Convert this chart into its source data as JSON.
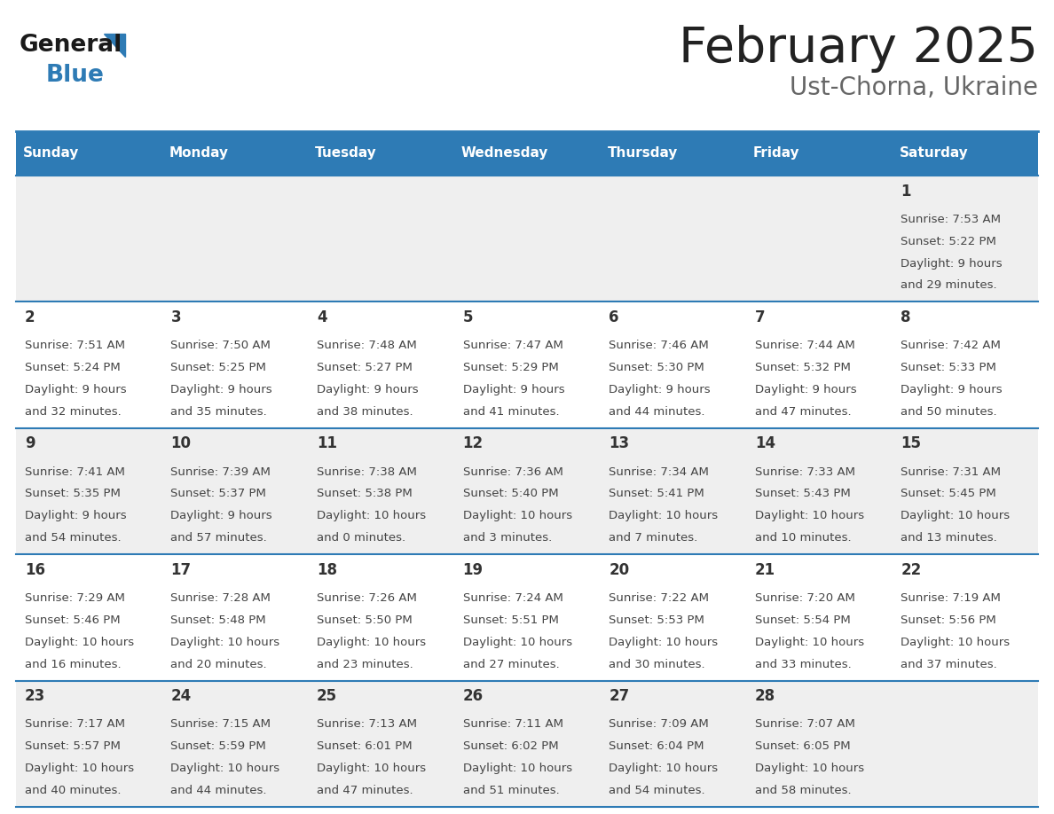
{
  "title": "February 2025",
  "subtitle": "Ust-Chorna, Ukraine",
  "days_of_week": [
    "Sunday",
    "Monday",
    "Tuesday",
    "Wednesday",
    "Thursday",
    "Friday",
    "Saturday"
  ],
  "header_bg": "#2E7BB5",
  "header_text_color": "#FFFFFF",
  "cell_bg_even": "#EFEFEF",
  "cell_bg_odd": "#FFFFFF",
  "cell_text_color": "#444444",
  "day_number_color": "#333333",
  "border_color": "#2E7BB5",
  "title_color": "#222222",
  "subtitle_color": "#666666",
  "logo_general_color": "#1a1a1a",
  "logo_blue_color": "#2E7BB5",
  "calendar_data": [
    {
      "day": 1,
      "col": 6,
      "row": 0,
      "sunrise": "7:53 AM",
      "sunset": "5:22 PM",
      "daylight_h": "9 hours",
      "daylight_m": "29 minutes"
    },
    {
      "day": 2,
      "col": 0,
      "row": 1,
      "sunrise": "7:51 AM",
      "sunset": "5:24 PM",
      "daylight_h": "9 hours",
      "daylight_m": "32 minutes"
    },
    {
      "day": 3,
      "col": 1,
      "row": 1,
      "sunrise": "7:50 AM",
      "sunset": "5:25 PM",
      "daylight_h": "9 hours",
      "daylight_m": "35 minutes"
    },
    {
      "day": 4,
      "col": 2,
      "row": 1,
      "sunrise": "7:48 AM",
      "sunset": "5:27 PM",
      "daylight_h": "9 hours",
      "daylight_m": "38 minutes"
    },
    {
      "day": 5,
      "col": 3,
      "row": 1,
      "sunrise": "7:47 AM",
      "sunset": "5:29 PM",
      "daylight_h": "9 hours",
      "daylight_m": "41 minutes"
    },
    {
      "day": 6,
      "col": 4,
      "row": 1,
      "sunrise": "7:46 AM",
      "sunset": "5:30 PM",
      "daylight_h": "9 hours",
      "daylight_m": "44 minutes"
    },
    {
      "day": 7,
      "col": 5,
      "row": 1,
      "sunrise": "7:44 AM",
      "sunset": "5:32 PM",
      "daylight_h": "9 hours",
      "daylight_m": "47 minutes"
    },
    {
      "day": 8,
      "col": 6,
      "row": 1,
      "sunrise": "7:42 AM",
      "sunset": "5:33 PM",
      "daylight_h": "9 hours",
      "daylight_m": "50 minutes"
    },
    {
      "day": 9,
      "col": 0,
      "row": 2,
      "sunrise": "7:41 AM",
      "sunset": "5:35 PM",
      "daylight_h": "9 hours",
      "daylight_m": "54 minutes"
    },
    {
      "day": 10,
      "col": 1,
      "row": 2,
      "sunrise": "7:39 AM",
      "sunset": "5:37 PM",
      "daylight_h": "9 hours",
      "daylight_m": "57 minutes"
    },
    {
      "day": 11,
      "col": 2,
      "row": 2,
      "sunrise": "7:38 AM",
      "sunset": "5:38 PM",
      "daylight_h": "10 hours",
      "daylight_m": "0 minutes"
    },
    {
      "day": 12,
      "col": 3,
      "row": 2,
      "sunrise": "7:36 AM",
      "sunset": "5:40 PM",
      "daylight_h": "10 hours",
      "daylight_m": "3 minutes"
    },
    {
      "day": 13,
      "col": 4,
      "row": 2,
      "sunrise": "7:34 AM",
      "sunset": "5:41 PM",
      "daylight_h": "10 hours",
      "daylight_m": "7 minutes"
    },
    {
      "day": 14,
      "col": 5,
      "row": 2,
      "sunrise": "7:33 AM",
      "sunset": "5:43 PM",
      "daylight_h": "10 hours",
      "daylight_m": "10 minutes"
    },
    {
      "day": 15,
      "col": 6,
      "row": 2,
      "sunrise": "7:31 AM",
      "sunset": "5:45 PM",
      "daylight_h": "10 hours",
      "daylight_m": "13 minutes"
    },
    {
      "day": 16,
      "col": 0,
      "row": 3,
      "sunrise": "7:29 AM",
      "sunset": "5:46 PM",
      "daylight_h": "10 hours",
      "daylight_m": "16 minutes"
    },
    {
      "day": 17,
      "col": 1,
      "row": 3,
      "sunrise": "7:28 AM",
      "sunset": "5:48 PM",
      "daylight_h": "10 hours",
      "daylight_m": "20 minutes"
    },
    {
      "day": 18,
      "col": 2,
      "row": 3,
      "sunrise": "7:26 AM",
      "sunset": "5:50 PM",
      "daylight_h": "10 hours",
      "daylight_m": "23 minutes"
    },
    {
      "day": 19,
      "col": 3,
      "row": 3,
      "sunrise": "7:24 AM",
      "sunset": "5:51 PM",
      "daylight_h": "10 hours",
      "daylight_m": "27 minutes"
    },
    {
      "day": 20,
      "col": 4,
      "row": 3,
      "sunrise": "7:22 AM",
      "sunset": "5:53 PM",
      "daylight_h": "10 hours",
      "daylight_m": "30 minutes"
    },
    {
      "day": 21,
      "col": 5,
      "row": 3,
      "sunrise": "7:20 AM",
      "sunset": "5:54 PM",
      "daylight_h": "10 hours",
      "daylight_m": "33 minutes"
    },
    {
      "day": 22,
      "col": 6,
      "row": 3,
      "sunrise": "7:19 AM",
      "sunset": "5:56 PM",
      "daylight_h": "10 hours",
      "daylight_m": "37 minutes"
    },
    {
      "day": 23,
      "col": 0,
      "row": 4,
      "sunrise": "7:17 AM",
      "sunset": "5:57 PM",
      "daylight_h": "10 hours",
      "daylight_m": "40 minutes"
    },
    {
      "day": 24,
      "col": 1,
      "row": 4,
      "sunrise": "7:15 AM",
      "sunset": "5:59 PM",
      "daylight_h": "10 hours",
      "daylight_m": "44 minutes"
    },
    {
      "day": 25,
      "col": 2,
      "row": 4,
      "sunrise": "7:13 AM",
      "sunset": "6:01 PM",
      "daylight_h": "10 hours",
      "daylight_m": "47 minutes"
    },
    {
      "day": 26,
      "col": 3,
      "row": 4,
      "sunrise": "7:11 AM",
      "sunset": "6:02 PM",
      "daylight_h": "10 hours",
      "daylight_m": "51 minutes"
    },
    {
      "day": 27,
      "col": 4,
      "row": 4,
      "sunrise": "7:09 AM",
      "sunset": "6:04 PM",
      "daylight_h": "10 hours",
      "daylight_m": "54 minutes"
    },
    {
      "day": 28,
      "col": 5,
      "row": 4,
      "sunrise": "7:07 AM",
      "sunset": "6:05 PM",
      "daylight_h": "10 hours",
      "daylight_m": "58 minutes"
    }
  ]
}
